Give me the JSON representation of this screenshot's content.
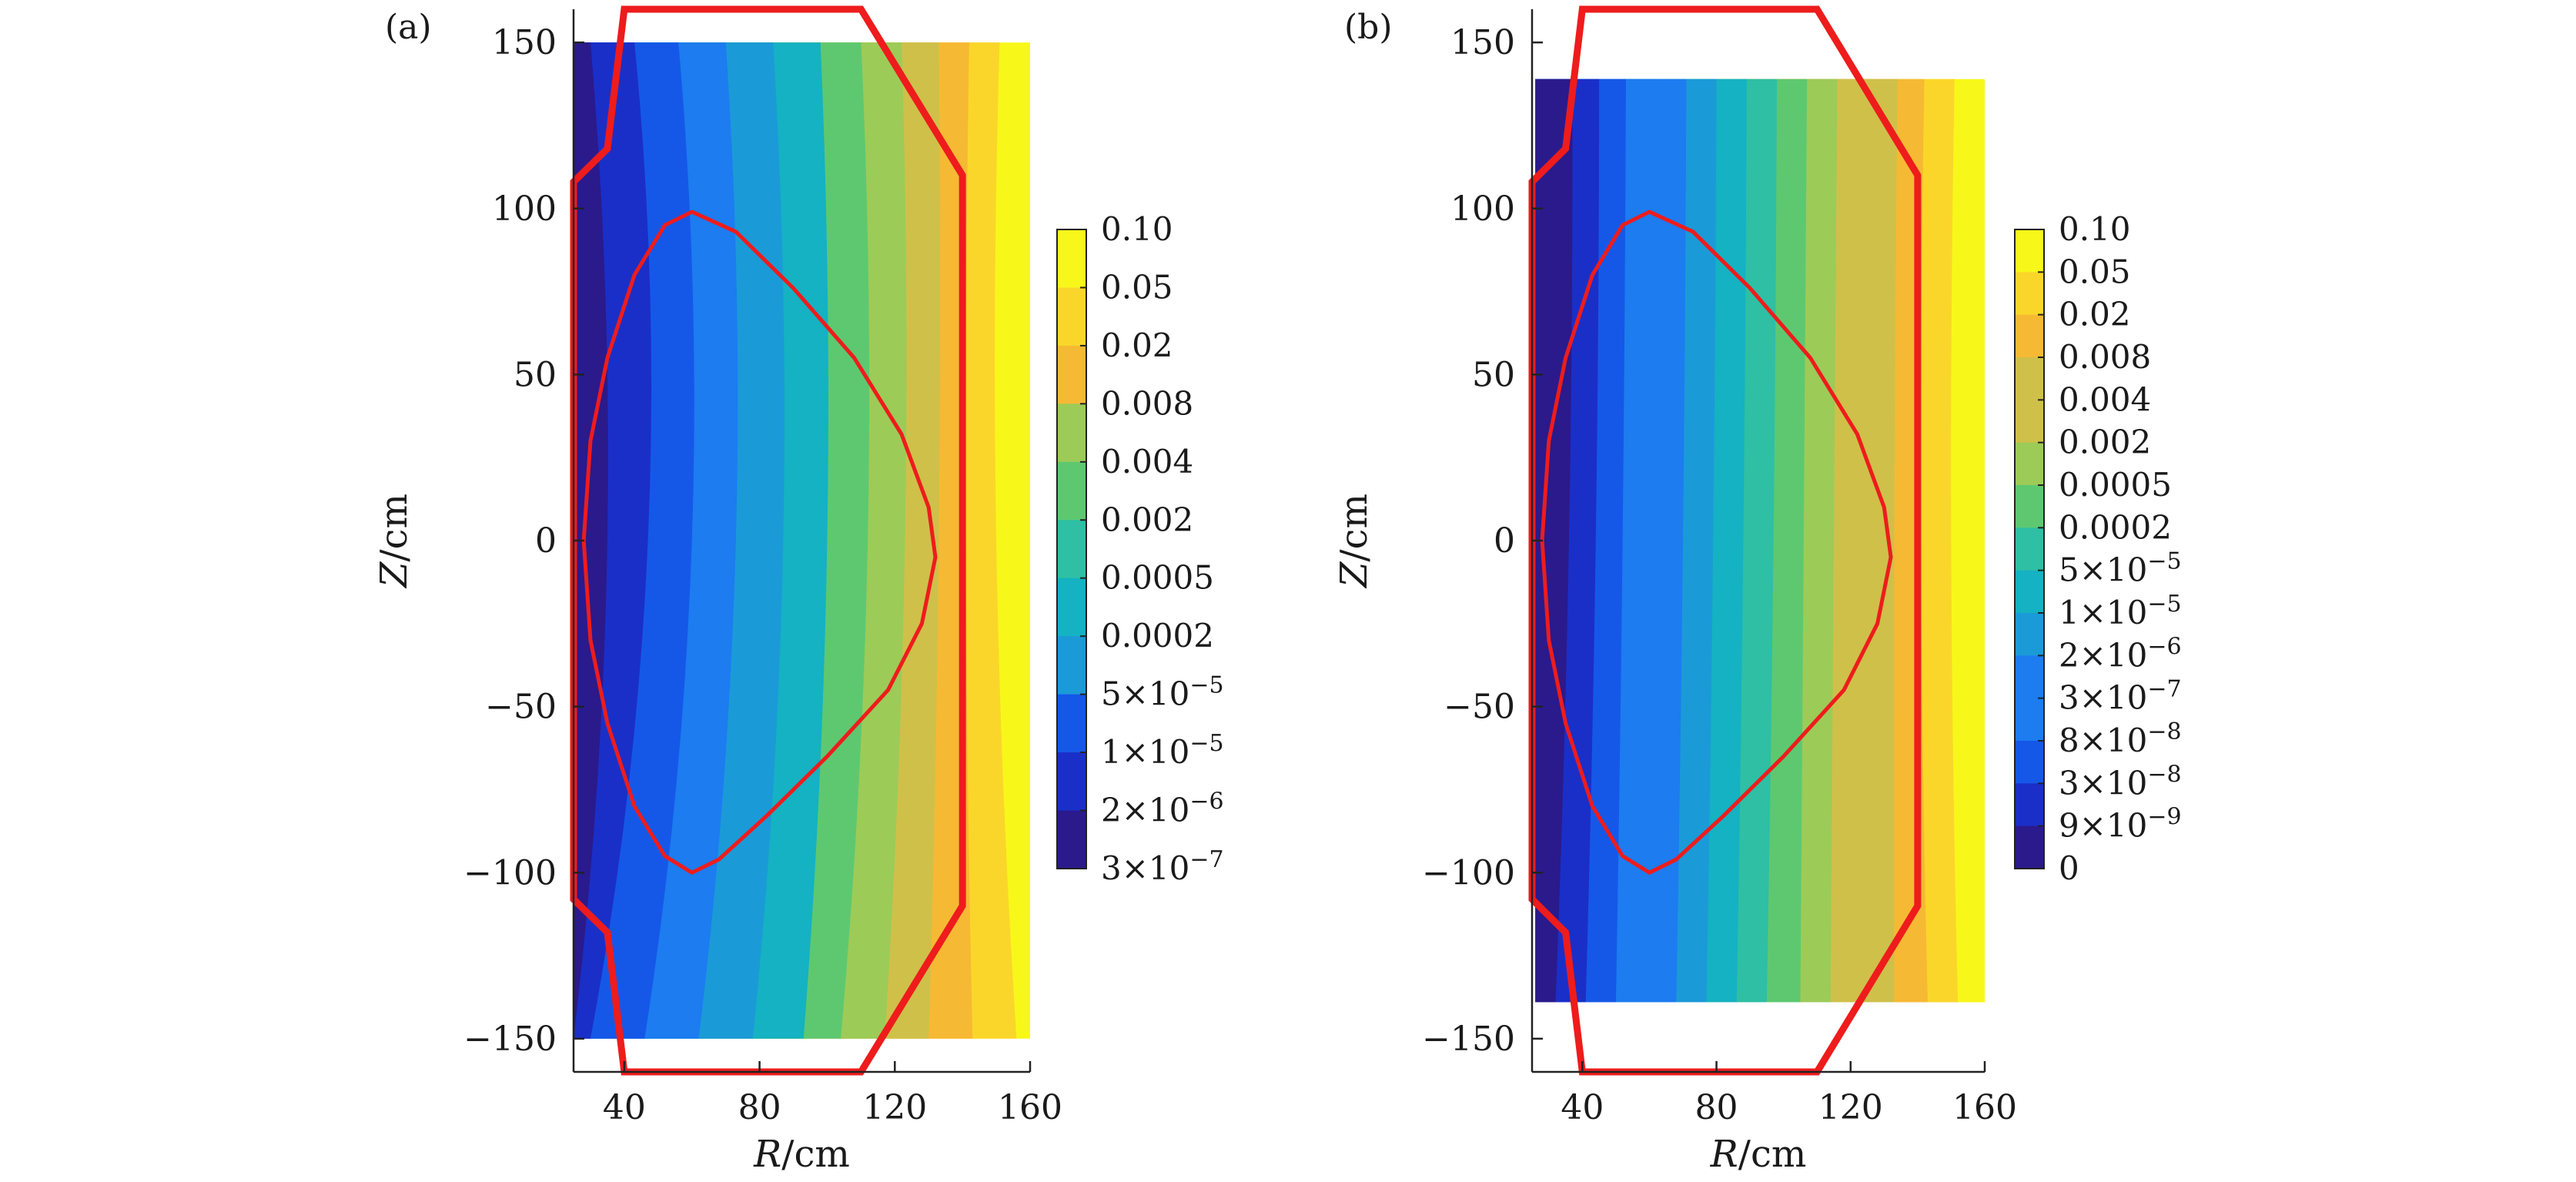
{
  "colors": {
    "boundary": "#ee1c1c",
    "colormap": [
      "#2a1a8c",
      "#1a2fc8",
      "#1558e8",
      "#1c7cf0",
      "#1b9ad8",
      "#14b2c2",
      "#2ebfa4",
      "#5ec870",
      "#9ccb58",
      "#cfc04a",
      "#f6b934",
      "#fbd62a",
      "#f8f71a"
    ]
  },
  "chart_data": [
    {
      "type": "heatmap",
      "panel_label": "(a)",
      "xlabel": "R/cm",
      "ylabel": "Z/cm",
      "xlim": [
        25,
        160
      ],
      "ylim": [
        -160,
        160
      ],
      "x_ticks": [
        40,
        80,
        120,
        160
      ],
      "y_ticks": [
        -150,
        -100,
        -50,
        0,
        50,
        100,
        150
      ],
      "data_extent": {
        "r": [
          25,
          160
        ],
        "z": [
          -150,
          150
        ]
      },
      "colorbar": {
        "labels": [
          "0.10",
          "0.05",
          "0.02",
          "0.008",
          "0.004",
          "0.002",
          "0.0005",
          "0.0002",
          "5×10⁻⁵",
          "1×10⁻⁵",
          "2×10⁻⁶",
          "3×10⁻⁷"
        ],
        "levels": 11
      },
      "contour_levels": [
        {
          "r0": 160,
          "ra": 160,
          "rb": 160
        },
        {
          "r0": 150,
          "ra": 151,
          "rb": 156
        },
        {
          "r0": 141,
          "ra": 142,
          "rb": 143
        },
        {
          "r0": 133,
          "ra": 133,
          "rb": 130
        },
        {
          "r0": 123,
          "ra": 122,
          "rb": 117
        },
        {
          "r0": 112,
          "ra": 110,
          "rb": 104
        },
        {
          "r0": 100,
          "ra": 98,
          "rb": 93
        },
        {
          "r0": 87,
          "ra": 84,
          "rb": 78
        },
        {
          "r0": 73,
          "ra": 70,
          "rb": 62
        },
        {
          "r0": 60,
          "ra": 56,
          "rb": 46
        },
        {
          "r0": 47,
          "ra": 43,
          "rb": 30
        },
        {
          "r0": 35,
          "ra": 30,
          "rb": 25
        }
      ],
      "vessel": [
        {
          "r": 25,
          "z": 108
        },
        {
          "r": 35,
          "z": 118
        },
        {
          "r": 40,
          "z": 160
        },
        {
          "r": 110,
          "z": 160
        },
        {
          "r": 140,
          "z": 110
        },
        {
          "r": 140,
          "z": -110
        },
        {
          "r": 110,
          "z": -160
        },
        {
          "r": 40,
          "z": -160
        },
        {
          "r": 35,
          "z": -118
        },
        {
          "r": 25,
          "z": -108
        }
      ],
      "lcfs": [
        {
          "r": 60,
          "z": 99
        },
        {
          "r": 73,
          "z": 93
        },
        {
          "r": 90,
          "z": 76
        },
        {
          "r": 108,
          "z": 55
        },
        {
          "r": 122,
          "z": 32
        },
        {
          "r": 130,
          "z": 10
        },
        {
          "r": 132,
          "z": -5
        },
        {
          "r": 128,
          "z": -25
        },
        {
          "r": 118,
          "z": -45
        },
        {
          "r": 100,
          "z": -65
        },
        {
          "r": 82,
          "z": -83
        },
        {
          "r": 68,
          "z": -96
        },
        {
          "r": 60,
          "z": -100
        },
        {
          "r": 52,
          "z": -95
        },
        {
          "r": 43,
          "z": -80
        },
        {
          "r": 35,
          "z": -55
        },
        {
          "r": 30,
          "z": -30
        },
        {
          "r": 28,
          "z": 0
        },
        {
          "r": 30,
          "z": 30
        },
        {
          "r": 35,
          "z": 55
        },
        {
          "r": 43,
          "z": 80
        },
        {
          "r": 52,
          "z": 95
        }
      ]
    },
    {
      "type": "heatmap",
      "panel_label": "(b)",
      "xlabel": "R/cm",
      "ylabel": "Z/cm",
      "xlim": [
        25,
        160
      ],
      "ylim": [
        -160,
        160
      ],
      "x_ticks": [
        40,
        80,
        120,
        160
      ],
      "y_ticks": [
        -150,
        -100,
        -50,
        0,
        50,
        100,
        150
      ],
      "data_extent": {
        "r": [
          26,
          160
        ],
        "z": [
          -139,
          139
        ]
      },
      "colorbar": {
        "labels": [
          "0.10",
          "0.05",
          "0.02",
          "0.008",
          "0.004",
          "0.002",
          "0.0005",
          "0.0002",
          "5×10⁻⁵",
          "1×10⁻⁵",
          "2×10⁻⁶",
          "3×10⁻⁷",
          "8×10⁻⁸",
          "3×10⁻⁸",
          "9×10⁻⁹",
          "0"
        ],
        "levels": 15
      },
      "contour_levels": [
        {
          "r0": 160,
          "ra": 160,
          "rb": 160
        },
        {
          "r0": 150,
          "ra": 151,
          "rb": 152
        },
        {
          "r0": 141,
          "ra": 142,
          "rb": 143
        },
        {
          "r0": 133,
          "ra": 134,
          "rb": 133
        },
        {
          "r0": 124,
          "ra": 125,
          "rb": 124
        },
        {
          "r0": 115,
          "ra": 116,
          "rb": 114
        },
        {
          "r0": 106,
          "ra": 107,
          "rb": 105
        },
        {
          "r0": 97,
          "ra": 98,
          "rb": 95
        },
        {
          "r0": 88,
          "ra": 89,
          "rb": 86
        },
        {
          "r0": 79,
          "ra": 80,
          "rb": 77
        },
        {
          "r0": 70,
          "ra": 71,
          "rb": 68
        },
        {
          "r0": 61,
          "ra": 62,
          "rb": 59
        },
        {
          "r0": 52,
          "ra": 53,
          "rb": 50
        },
        {
          "r0": 44,
          "ra": 45,
          "rb": 41
        },
        {
          "r0": 36,
          "ra": 37,
          "rb": 32
        }
      ],
      "vessel": [
        {
          "r": 25,
          "z": 108
        },
        {
          "r": 35,
          "z": 118
        },
        {
          "r": 40,
          "z": 160
        },
        {
          "r": 110,
          "z": 160
        },
        {
          "r": 140,
          "z": 110
        },
        {
          "r": 140,
          "z": -110
        },
        {
          "r": 110,
          "z": -160
        },
        {
          "r": 40,
          "z": -160
        },
        {
          "r": 35,
          "z": -118
        },
        {
          "r": 25,
          "z": -108
        }
      ],
      "lcfs": [
        {
          "r": 60,
          "z": 99
        },
        {
          "r": 73,
          "z": 93
        },
        {
          "r": 90,
          "z": 76
        },
        {
          "r": 108,
          "z": 55
        },
        {
          "r": 122,
          "z": 32
        },
        {
          "r": 130,
          "z": 10
        },
        {
          "r": 132,
          "z": -5
        },
        {
          "r": 128,
          "z": -25
        },
        {
          "r": 118,
          "z": -45
        },
        {
          "r": 100,
          "z": -65
        },
        {
          "r": 82,
          "z": -83
        },
        {
          "r": 68,
          "z": -96
        },
        {
          "r": 60,
          "z": -100
        },
        {
          "r": 52,
          "z": -95
        },
        {
          "r": 43,
          "z": -80
        },
        {
          "r": 35,
          "z": -55
        },
        {
          "r": 30,
          "z": -30
        },
        {
          "r": 28,
          "z": 0
        },
        {
          "r": 30,
          "z": 30
        },
        {
          "r": 35,
          "z": 55
        },
        {
          "r": 43,
          "z": 80
        },
        {
          "r": 52,
          "z": 95
        }
      ]
    }
  ]
}
